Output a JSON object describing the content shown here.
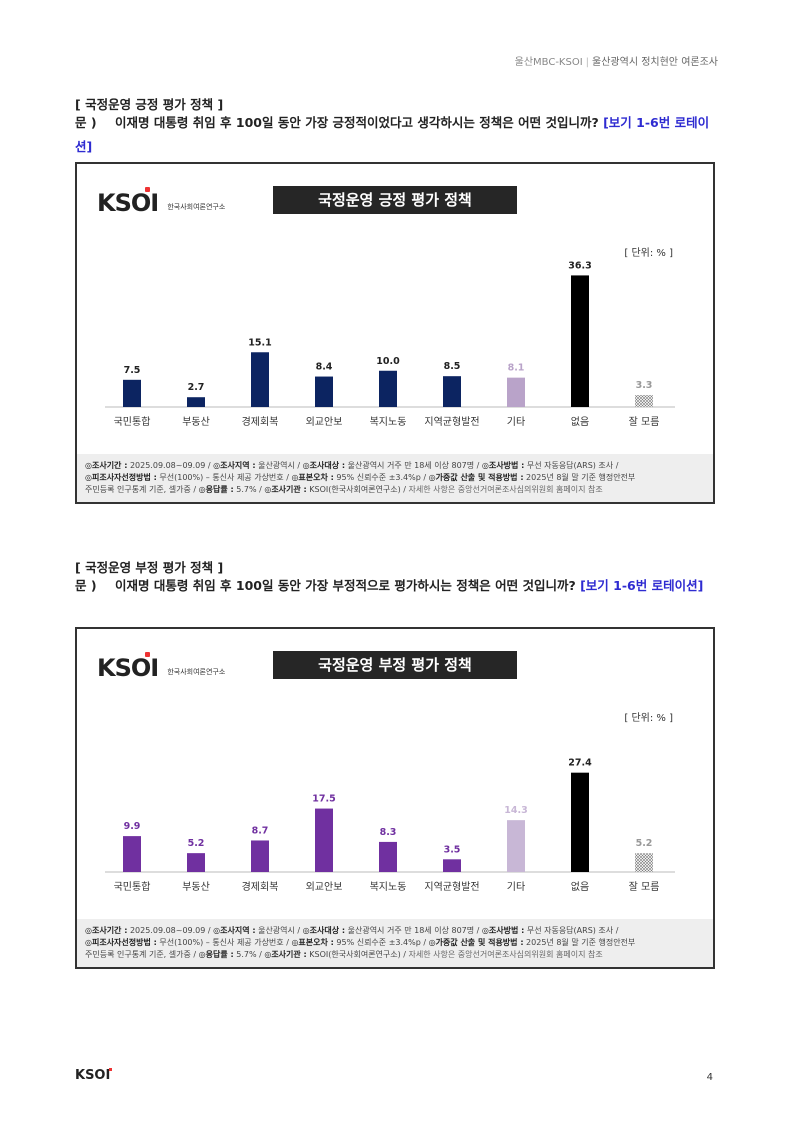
{
  "header": {
    "org": "울산MBC-KSOI",
    "sep": "|",
    "title": "울산광역시 정치현안 여론조사"
  },
  "section1": {
    "title": "[ 국정운영 긍정 평가 정책 ]",
    "q_prefix": "문 )",
    "q_text": "이재명 대통령 취임 후 100일 동안 가장 긍정적이었다고 생각하시는 정책은 어떤 것입니까?",
    "q_rotation": "[보기 1-6번 로테이션]"
  },
  "section2": {
    "title": "[ 국정운영 부정 평가 정책 ]",
    "q_prefix": "문 )",
    "q_text": "이재명 대통령 취임 후 100일 동안 가장 부정적으로 평가하시는 정책은 어떤 것입니까?",
    "q_rotation": "[보기 1-6번 로테이션]"
  },
  "logo": {
    "mark": "KSOI",
    "sub": "한국사회여론연구소"
  },
  "footer": {
    "l1_k1": "◎조사기간 :",
    "l1_v1": " 2025.09.08~09.09 / ",
    "l1_k2": "◎조사지역 :",
    "l1_v2": " 울산광역시 / ",
    "l1_k3": "◎조사대상 :",
    "l1_v3": " 울산광역시 거주 만 18세 이상 807명 / ",
    "l1_k4": "◎조사방법 :",
    "l1_v4": " 무선 자동응답(ARS) 조사 /",
    "l2_k1": "◎피조사자선정방법 :",
    "l2_v1": " 무선(100%) – 통신사 제공 가상번호 / ",
    "l2_k2": "◎표본오차 :",
    "l2_v2": " 95% 신뢰수준 ±3.4%p / ",
    "l2_k3": "◎가중값 산출 및 적용방법 :",
    "l2_v3": " 2025년 8월 말 기준 행정안전부",
    "l3_v1": "주민등록 인구통계 기준, 셀가중 / ",
    "l3_k2": "◎응답률 :",
    "l3_v2": " 5.7% / ",
    "l3_k3": "◎조사기관 :",
    "l3_v3": " KSOI(한국사회여론연구소) / ",
    "l3_dim": "자세한 사항은 중앙선거여론조사심의위원회 홈페이지 참조"
  },
  "page_number": "4",
  "bottom_logo": "KSOI",
  "chart_data": [
    {
      "type": "bar",
      "title": "국정운영 긍정 평가 정책",
      "unit": "[ 단위: % ]",
      "categories": [
        "국민통합",
        "부동산",
        "경제회복",
        "외교안보",
        "복지노동",
        "지역균형발전",
        "기타",
        "없음",
        "잘 모름"
      ],
      "values": [
        7.5,
        2.7,
        15.1,
        8.4,
        10.0,
        8.5,
        8.1,
        36.3,
        3.3
      ],
      "value_labels": [
        "7.5",
        "2.7",
        "15.1",
        "8.4",
        "10.0",
        "8.5",
        "8.1",
        "36.3",
        "3.3"
      ],
      "colors": [
        "#0c2461",
        "#0c2461",
        "#0c2461",
        "#0c2461",
        "#0c2461",
        "#0c2461",
        "#b9a3c9",
        "#000000",
        "hatch"
      ],
      "label_colors": [
        "#222222",
        "#222222",
        "#222222",
        "#222222",
        "#222222",
        "#222222",
        "#b9a3c9",
        "#222222",
        "#999999"
      ]
    },
    {
      "type": "bar",
      "title": "국정운영 부정 평가 정책",
      "unit": "[ 단위: % ]",
      "categories": [
        "국민통합",
        "부동산",
        "경제회복",
        "외교안보",
        "복지노동",
        "지역균형발전",
        "기타",
        "없음",
        "잘 모름"
      ],
      "values": [
        9.9,
        5.2,
        8.7,
        17.5,
        8.3,
        3.5,
        14.3,
        27.4,
        5.2
      ],
      "value_labels": [
        "9.9",
        "5.2",
        "8.7",
        "17.5",
        "8.3",
        "3.5",
        "14.3",
        "27.4",
        "5.2"
      ],
      "colors": [
        "#7030a0",
        "#7030a0",
        "#7030a0",
        "#7030a0",
        "#7030a0",
        "#7030a0",
        "#c8b7d6",
        "#000000",
        "hatch"
      ],
      "label_colors": [
        "#7030a0",
        "#7030a0",
        "#7030a0",
        "#7030a0",
        "#7030a0",
        "#7030a0",
        "#c8b7d6",
        "#222222",
        "#999999"
      ]
    }
  ]
}
